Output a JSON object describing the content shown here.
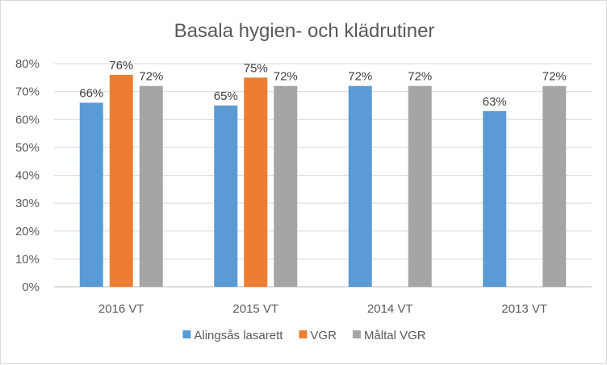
{
  "chart_data": {
    "type": "bar",
    "title": "Basala hygien- och klädrutiner",
    "categories": [
      "2016 VT",
      "2015 VT",
      "2014 VT",
      "2013 VT"
    ],
    "series": [
      {
        "name": "Alingsås lasarett",
        "color": "#5B9BD5",
        "values": [
          66,
          65,
          72,
          63
        ],
        "labels": [
          "66%",
          "65%",
          "72%",
          "63%"
        ]
      },
      {
        "name": "VGR",
        "color": "#ED7D31",
        "values": [
          76,
          75,
          null,
          null
        ],
        "labels": [
          "76%",
          "75%",
          null,
          null
        ]
      },
      {
        "name": "Måltal VGR",
        "color": "#A5A5A5",
        "values": [
          72,
          72,
          72,
          72
        ],
        "labels": [
          "72%",
          "72%",
          "72%",
          "72%"
        ]
      }
    ],
    "yticks": [
      "0%",
      "10%",
      "20%",
      "30%",
      "40%",
      "50%",
      "60%",
      "70%",
      "80%"
    ],
    "ylim": [
      0,
      80
    ],
    "ystep": 10,
    "xlabel": "",
    "ylabel": "",
    "grid": true,
    "legend_position": "bottom",
    "colors": {
      "grid": "#d9d9d9",
      "axis": "#bfbfbf"
    }
  }
}
